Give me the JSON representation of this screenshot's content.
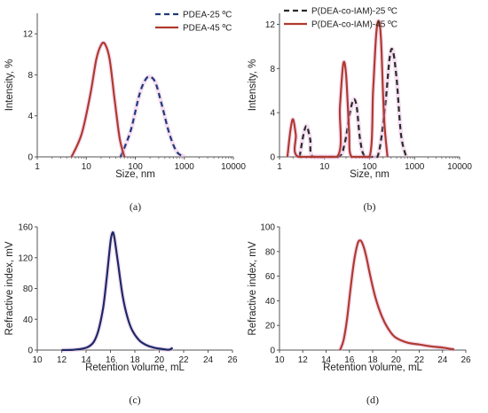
{
  "chart_data": [
    {
      "type": "line",
      "panel_label": "(a)",
      "xlabel": "Size, nm",
      "ylabel": "Intensity, %",
      "xscale": "log",
      "xlim": [
        1,
        10000
      ],
      "ylim": [
        0,
        14
      ],
      "xticks": [
        1,
        10,
        100,
        1000,
        10000
      ],
      "xtick_labels": [
        "1",
        "10",
        "100",
        "1000",
        "10000"
      ],
      "yticks": [
        0,
        4,
        8,
        12
      ],
      "ytick_labels": [
        "0",
        "4",
        "8",
        "12"
      ],
      "legend_position": "top-right",
      "series": [
        {
          "name": "PDEA-25 ºC",
          "color": "#1f3a7a",
          "dash": "dashed",
          "x": [
            50,
            80,
            120,
            160,
            200,
            260,
            350,
            500,
            700,
            1000
          ],
          "y": [
            0,
            2.5,
            6.0,
            7.5,
            7.8,
            7.2,
            5.0,
            2.2,
            0.5,
            0
          ]
        },
        {
          "name": "PDEA-45 ºC",
          "color": "#b03a2e",
          "dash": "solid",
          "x": [
            5,
            8,
            12,
            16,
            20,
            24,
            30,
            38,
            48,
            60
          ],
          "y": [
            0,
            2.2,
            6.0,
            9.5,
            10.9,
            11.0,
            9.5,
            5.5,
            1.8,
            0
          ]
        }
      ]
    },
    {
      "type": "line",
      "panel_label": "(b)",
      "xlabel": "Size, nm",
      "ylabel": "Intensity, %",
      "xscale": "log",
      "xlim": [
        1,
        10000
      ],
      "ylim": [
        0,
        13
      ],
      "xticks": [
        1,
        10,
        100,
        1000,
        10000
      ],
      "xtick_labels": [
        "1",
        "10",
        "100",
        "1000",
        "10000"
      ],
      "yticks": [
        0,
        4,
        8,
        12
      ],
      "ytick_labels": [
        "0",
        "4",
        "8",
        "12"
      ],
      "legend_position": "top-right",
      "series": [
        {
          "name": "P(DEA-co-IAM)-25 ºC",
          "color": "#2b2b2b",
          "dash": "dashed",
          "x": [
            2.8,
            3.4,
            4.0,
            4.8,
            5.6,
            20,
            28,
            36,
            44,
            52,
            62,
            80,
            150,
            220,
            280,
            330,
            400,
            500,
            650
          ],
          "y": [
            0,
            2.0,
            2.8,
            1.6,
            0,
            0,
            1.2,
            3.8,
            5.2,
            4.5,
            1.5,
            0,
            0,
            4.5,
            9.0,
            9.6,
            7.0,
            2.0,
            0
          ]
        },
        {
          "name": "P(DEA-co-IAM)-45 ºC",
          "color": "#b03a2e",
          "dash": "solid",
          "x": [
            1.5,
            1.75,
            2.0,
            2.3,
            2.6,
            19,
            22,
            26,
            30,
            35,
            40,
            100,
            120,
            140,
            160,
            180,
            210,
            250
          ],
          "y": [
            0,
            2.4,
            3.4,
            2.0,
            0,
            0,
            4.5,
            8.4,
            7.5,
            2.5,
            0,
            0,
            6.0,
            11.0,
            12.3,
            10.5,
            3.5,
            0
          ]
        }
      ]
    },
    {
      "type": "line",
      "panel_label": "(c)",
      "xlabel": "Retention volume, mL",
      "ylabel": "Refractive index, mV",
      "xlim": [
        10,
        26
      ],
      "ylim": [
        0,
        160
      ],
      "xticks": [
        10,
        12,
        14,
        16,
        18,
        20,
        22,
        24,
        26
      ],
      "xtick_labels": [
        "10",
        "12",
        "14",
        "16",
        "18",
        "20",
        "22",
        "24",
        "26"
      ],
      "yticks": [
        0,
        40,
        80,
        120,
        160
      ],
      "ytick_labels": [
        "0",
        "40",
        "80",
        "120",
        "160"
      ],
      "series": [
        {
          "color": "#1a2a66",
          "dash": "solid",
          "x": [
            12.0,
            13.0,
            14.0,
            14.6,
            15.0,
            15.4,
            15.7,
            16.0,
            16.15,
            16.3,
            16.6,
            17.0,
            17.4,
            17.8,
            18.4,
            19.0,
            19.6,
            20.2,
            20.8,
            21.1
          ],
          "y": [
            0,
            0.5,
            3,
            10,
            25,
            55,
            95,
            140,
            152,
            148,
            115,
            70,
            42,
            25,
            12,
            6,
            3,
            1.5,
            0.5,
            3
          ]
        }
      ]
    },
    {
      "type": "line",
      "panel_label": "(d)",
      "xlabel": "Retention volume, mL",
      "ylabel": "Refractive index, mV",
      "xlim": [
        10,
        26
      ],
      "ylim": [
        0,
        100
      ],
      "xticks": [
        10,
        12,
        14,
        16,
        18,
        20,
        22,
        24,
        26
      ],
      "xtick_labels": [
        "10",
        "12",
        "14",
        "16",
        "18",
        "20",
        "22",
        "24",
        "26"
      ],
      "yticks": [
        0,
        20,
        40,
        60,
        80,
        100
      ],
      "ytick_labels": [
        "0",
        "20",
        "40",
        "60",
        "80",
        "100"
      ],
      "series": [
        {
          "color": "#b03a2e",
          "dash": "solid",
          "x": [
            15.2,
            15.5,
            15.8,
            16.1,
            16.4,
            16.7,
            16.9,
            17.1,
            17.4,
            17.8,
            18.2,
            18.6,
            19.0,
            19.5,
            20.0,
            21.0,
            22.0,
            23.0,
            24.0,
            25.0
          ],
          "y": [
            0,
            8,
            25,
            50,
            72,
            86,
            89,
            87,
            78,
            60,
            44,
            32,
            23,
            15,
            10,
            6,
            4.5,
            3,
            2,
            0.5
          ]
        }
      ]
    }
  ]
}
